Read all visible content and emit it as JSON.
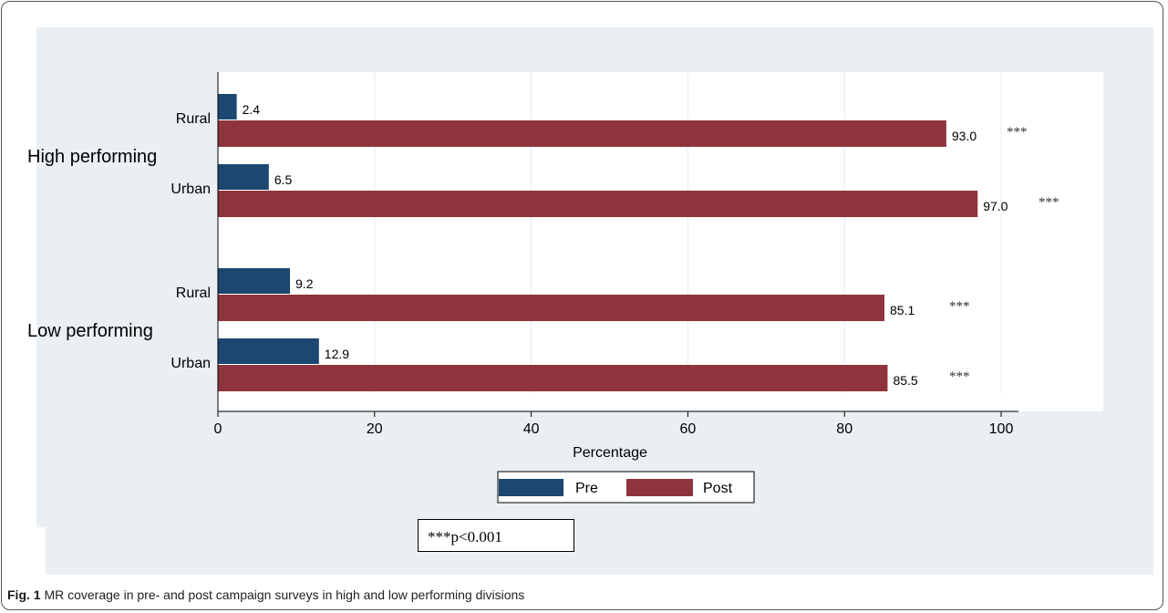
{
  "chart_data": {
    "type": "bar",
    "orientation": "horizontal",
    "groups": [
      {
        "label": "High performing",
        "rows": [
          {
            "label": "Rural",
            "pre": 2.4,
            "post": 93.0,
            "pre_label": "2.4",
            "post_label": "93.0",
            "sig": "***"
          },
          {
            "label": "Urban",
            "pre": 6.5,
            "post": 97.0,
            "pre_label": "6.5",
            "post_label": "97.0",
            "sig": "***"
          }
        ]
      },
      {
        "label": "Low performing",
        "rows": [
          {
            "label": "Rural",
            "pre": 9.2,
            "post": 85.1,
            "pre_label": "9.2",
            "post_label": "85.1",
            "sig": "***"
          },
          {
            "label": "Urban",
            "pre": 12.9,
            "post": 85.5,
            "pre_label": "12.9",
            "post_label": "85.5",
            "sig": "***"
          }
        ]
      }
    ],
    "series": [
      {
        "name": "Pre",
        "color": "#1c4770"
      },
      {
        "name": "Post",
        "color": "#8f343e"
      }
    ],
    "xlabel": "Percentage",
    "xlim": [
      0,
      100
    ],
    "xticks": [
      "0",
      "20",
      "40",
      "60",
      "80",
      "100"
    ],
    "grid": true,
    "legend_position": "bottom"
  },
  "note": "***p<0.001",
  "caption": {
    "label": "Fig. 1",
    "text": " MR coverage in pre- and post campaign surveys in high and low performing divisions"
  }
}
